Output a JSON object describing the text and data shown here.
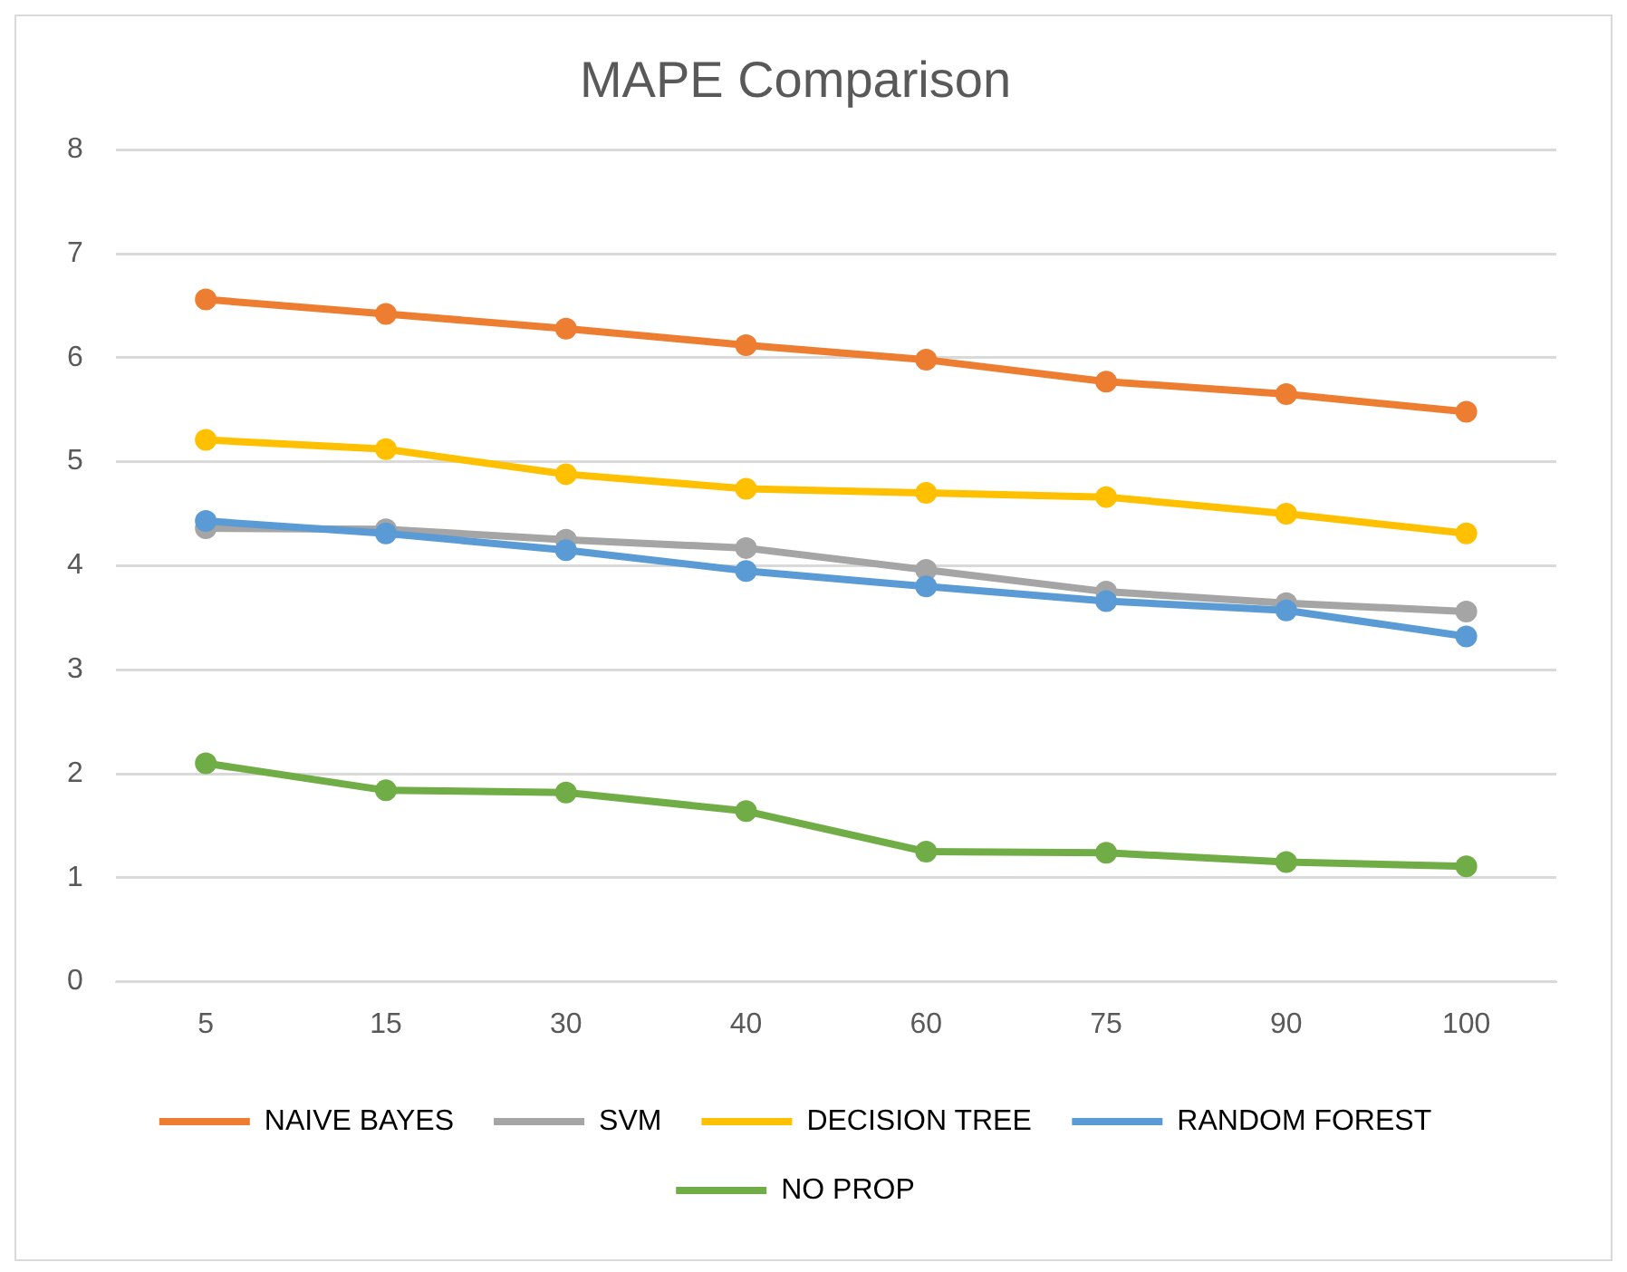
{
  "chart_data": {
    "type": "line",
    "title": "MAPE Comparison",
    "categories": [
      "5",
      "15",
      "30",
      "40",
      "60",
      "75",
      "90",
      "100"
    ],
    "series": [
      {
        "name": "NAIVE BAYES",
        "color": "#ed7d31",
        "values": [
          6.56,
          6.42,
          6.28,
          6.12,
          5.98,
          5.77,
          5.65,
          5.48
        ]
      },
      {
        "name": "SVM",
        "color": "#a5a5a5",
        "values": [
          4.36,
          4.35,
          4.25,
          4.17,
          3.96,
          3.75,
          3.64,
          3.56
        ]
      },
      {
        "name": "DECISION TREE",
        "color": "#ffc000",
        "values": [
          5.21,
          5.12,
          4.88,
          4.74,
          4.7,
          4.66,
          4.5,
          4.31
        ]
      },
      {
        "name": "RANDOM FOREST",
        "color": "#5b9bd5",
        "values": [
          4.43,
          4.31,
          4.15,
          3.95,
          3.8,
          3.66,
          3.57,
          3.32
        ]
      },
      {
        "name": "NO PROP",
        "color": "#70ad47",
        "values": [
          2.1,
          1.84,
          1.82,
          1.64,
          1.25,
          1.24,
          1.15,
          1.11
        ]
      }
    ],
    "ylim": [
      0,
      8
    ],
    "yticks": [
      0,
      1,
      2,
      3,
      4,
      5,
      6,
      7,
      8
    ],
    "grid": "y",
    "legend": "bottom",
    "marker": "circle",
    "line_style": "solid"
  }
}
